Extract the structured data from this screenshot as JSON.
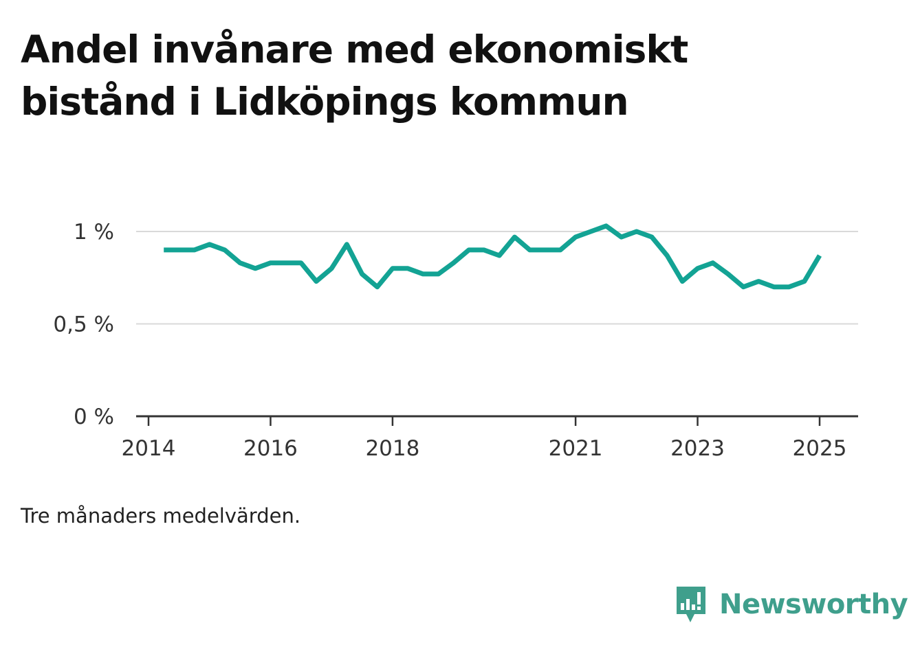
{
  "title": "Andel invånare med ekonomiskt bistånd i Lidköpings kommun",
  "footnote": "Tre månaders medelvärden.",
  "brand": {
    "name": "Newsworthy",
    "color": "#3f9f8c"
  },
  "chart_data": {
    "type": "line",
    "title": "Andel invånare med ekonomiskt bistånd i Lidköpings kommun",
    "xlabel": "",
    "ylabel": "",
    "xlim": [
      2014.0,
      2025.65
    ],
    "ylim": [
      0,
      1.1
    ],
    "x_ticks": [
      2014,
      2016,
      2018,
      2021,
      2023,
      2025
    ],
    "x_tick_labels": [
      "2014",
      "2016",
      "2018",
      "2021",
      "2023",
      "2025"
    ],
    "y_ticks": [
      0,
      0.5,
      1
    ],
    "y_tick_labels": [
      "0 %",
      "0,5 %",
      "1 %"
    ],
    "grid": true,
    "line_color": "#13a394",
    "series": [
      {
        "x": [
          2014.25,
          2014.5,
          2014.75,
          2015.0,
          2015.25,
          2015.5,
          2015.75,
          2016.0,
          2016.25,
          2016.5,
          2016.75,
          2017.0,
          2017.25,
          2017.5,
          2017.75,
          2018.0,
          2018.25,
          2018.5,
          2018.75,
          2019.0,
          2019.25,
          2019.5,
          2019.75,
          2020.0,
          2020.25,
          2020.5,
          2020.75,
          2021.0,
          2021.25,
          2021.5,
          2021.75,
          2022.0,
          2022.25,
          2022.5,
          2022.75,
          2023.0,
          2023.25,
          2023.5,
          2023.75,
          2024.0,
          2024.25,
          2024.5,
          2024.75,
          2025.0
        ],
        "values": [
          0.9,
          0.9,
          0.9,
          0.93,
          0.9,
          0.83,
          0.8,
          0.83,
          0.83,
          0.83,
          0.73,
          0.8,
          0.93,
          0.77,
          0.7,
          0.8,
          0.8,
          0.77,
          0.77,
          0.83,
          0.9,
          0.9,
          0.87,
          0.97,
          0.9,
          0.9,
          0.9,
          0.97,
          1.0,
          1.03,
          0.97,
          1.0,
          0.97,
          0.87,
          0.73,
          0.8,
          0.83,
          0.77,
          0.7,
          0.73,
          0.7,
          0.7,
          0.73,
          0.87
        ]
      }
    ]
  }
}
